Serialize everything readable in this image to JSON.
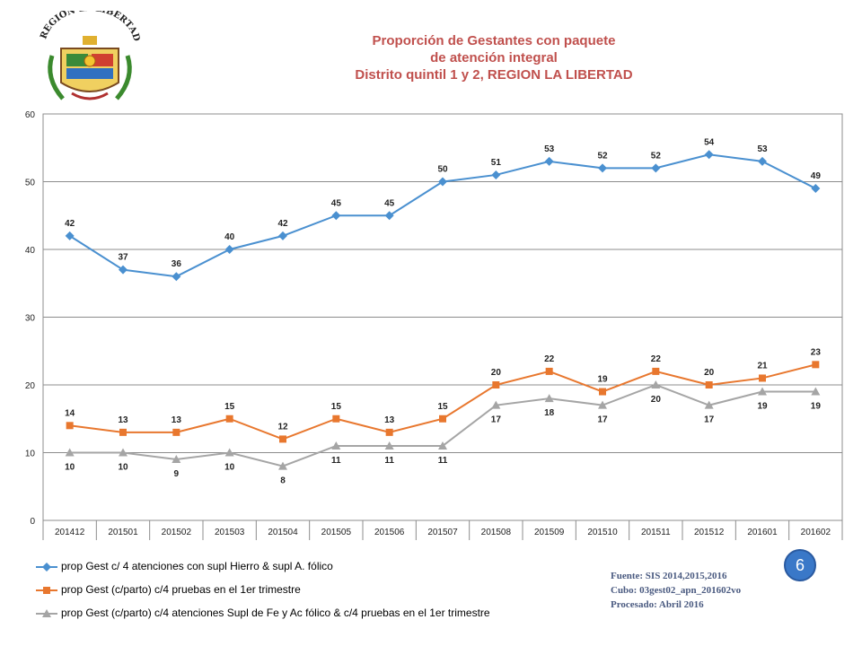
{
  "header": {
    "title_line1": "Proporción de Gestantes con paquete",
    "title_line2": "de atención integral",
    "title_line3": "Distrito quintil 1 y 2, REGION LA LIBERTAD",
    "logo_text": "REGIÓN LA LIBERTAD"
  },
  "chart_data": {
    "type": "line",
    "title": "Proporción de Gestantes con paquete de atención integral Distrito quintil 1 y 2, REGION LA LIBERTAD",
    "categories": [
      "201412",
      "201501",
      "201502",
      "201503",
      "201504",
      "201505",
      "201506",
      "201507",
      "201508",
      "201509",
      "201510",
      "201511",
      "201512",
      "201601",
      "201602"
    ],
    "ylim": [
      0,
      60
    ],
    "yticks": [
      0,
      10,
      20,
      30,
      40,
      50,
      60
    ],
    "grid": true,
    "legend_position": "bottom",
    "series": [
      {
        "name": "prop Gest c/ 4 atenciones con supl Hierro & supl A. fólico",
        "color": "#4a90d0",
        "marker": "diamond",
        "label_position": "above",
        "values": [
          42,
          37,
          36,
          40,
          42,
          45,
          45,
          50,
          51,
          53,
          52,
          52,
          54,
          53,
          49
        ]
      },
      {
        "name": "prop Gest (c/parto) c/4 pruebas en el 1er trimestre",
        "color": "#e8772e",
        "marker": "square",
        "label_position": "above",
        "values": [
          14,
          13,
          13,
          15,
          12,
          15,
          13,
          15,
          20,
          22,
          19,
          22,
          20,
          21,
          23
        ]
      },
      {
        "name": "prop Gest (c/parto) c/4 atenciones Supl de Fe y Ac fólico & c/4 pruebas en el 1er trimestre",
        "color": "#a5a5a5",
        "marker": "triangle",
        "label_position": "below",
        "values": [
          10,
          10,
          9,
          10,
          8,
          11,
          11,
          11,
          17,
          18,
          17,
          20,
          17,
          19,
          19
        ]
      }
    ]
  },
  "source": {
    "line1": "Fuente: SIS 2014,2015,2016",
    "line2": "Cubo: 03gest02_apn_201602vo",
    "line3": "Procesado: Abril 2016"
  },
  "page_number": "6"
}
